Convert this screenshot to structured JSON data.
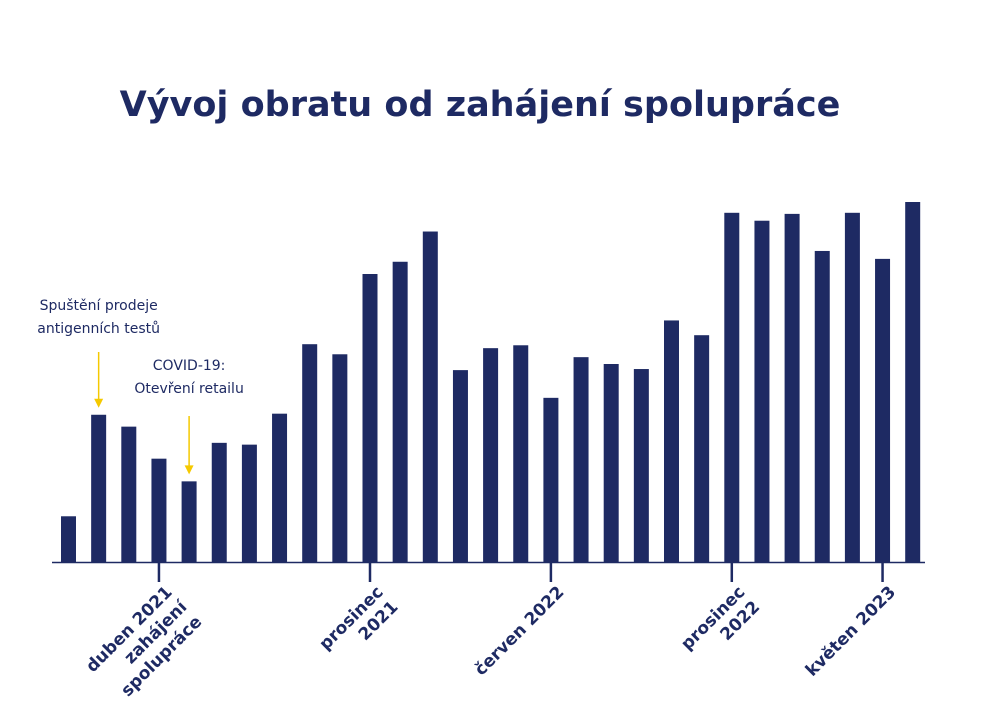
{
  "colors": {
    "bar": "#1e2a63",
    "axis": "#1e2a63",
    "arrow": "#f5c900",
    "text": "#1e2a63"
  },
  "chart_data": {
    "type": "bar",
    "title": "Vývoj obratu od zahájení spolupráce",
    "xlabel": "",
    "ylabel": "",
    "grid": false,
    "legend": "none",
    "ylim": [
      0,
      100
    ],
    "values": [
      12.7,
      40.9,
      37.6,
      28.7,
      22.4,
      33.1,
      32.6,
      41.2,
      60.5,
      57.7,
      80.0,
      83.4,
      91.8,
      53.3,
      59.4,
      60.2,
      45.6,
      56.9,
      55.0,
      53.6,
      67.1,
      63.0,
      97.0,
      94.8,
      96.7,
      86.4,
      97.0,
      84.2,
      100.0
    ],
    "ticks": [
      {
        "index": 3,
        "lines": [
          "duben 2021",
          "zahájení",
          "spolupráce"
        ]
      },
      {
        "index": 10,
        "lines": [
          "prosinec",
          "2021"
        ]
      },
      {
        "index": 16,
        "lines": [
          "červen 2022"
        ]
      },
      {
        "index": 22,
        "lines": [
          "prosinec",
          "2022"
        ]
      },
      {
        "index": 27,
        "lines": [
          "květen 2023"
        ]
      }
    ],
    "annotations": [
      {
        "index": 1,
        "lines": [
          "Spuštění prodeje",
          "antigenních testů"
        ]
      },
      {
        "index": 4,
        "lines": [
          "COVID-19:",
          "Otevření retailu"
        ]
      }
    ]
  }
}
